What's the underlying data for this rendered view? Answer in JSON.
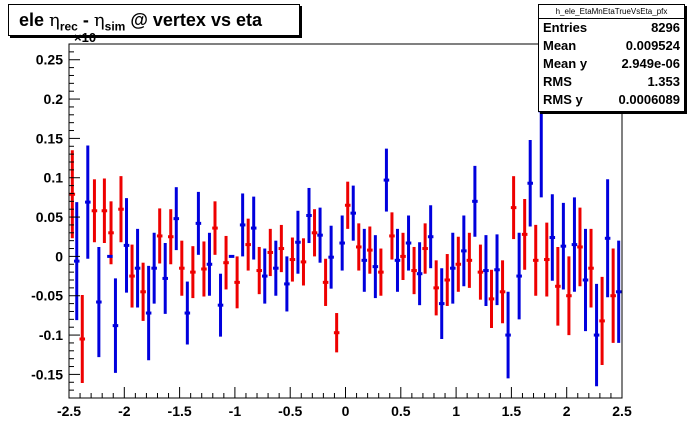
{
  "title": {
    "prefix": "ele ",
    "eta1": "η",
    "sub1": "rec",
    "minus": " - ",
    "eta2": "η",
    "sub2": "sim",
    "suffix": " @ vertex vs eta"
  },
  "stats": {
    "name": "h_ele_EtaMnEtaTrueVsEta_pfx",
    "rows": [
      {
        "label": "Entries",
        "value": "8296"
      },
      {
        "label": "Mean",
        "value": "0.009524"
      },
      {
        "label": "Mean y",
        "value": "2.949e-06"
      },
      {
        "label": "RMS",
        "value": "1.353"
      },
      {
        "label": "RMS y",
        "value": "0.0006089"
      }
    ]
  },
  "exponent_label": "×10",
  "colors": {
    "series_red": "#ee0000",
    "series_blue": "#0000dd"
  },
  "chart_data": {
    "type": "scatter",
    "title": "ele η_rec - η_sim @ vertex vs eta",
    "xlim": [
      -2.5,
      2.5
    ],
    "ylim": [
      -0.18,
      0.27
    ],
    "xticks": [
      -2.5,
      -2,
      -1.5,
      -1,
      -0.5,
      0,
      0.5,
      1,
      1.5,
      2,
      2.5
    ],
    "xtick_labels": [
      "-2.5",
      "-2",
      "-1.5",
      "-1",
      "-0.5",
      "0",
      "0.5",
      "1",
      "1.5",
      "2",
      "2.5"
    ],
    "yticks": [
      -0.15,
      -0.1,
      -0.05,
      0,
      0.05,
      0.1,
      0.15,
      0.2,
      0.25
    ],
    "ytick_labels": [
      "-0.15",
      "-0.1",
      "-0.05",
      "0",
      "0.05",
      "0.1",
      "0.15",
      "0.2",
      "0.25"
    ],
    "bin_half_width": 0.025,
    "series": [
      {
        "color": "#ee0000",
        "points": [
          [
            -2.47,
            0.079,
            0.056
          ],
          [
            -2.38,
            -0.105,
            0.056
          ],
          [
            -2.27,
            0.058,
            0.04
          ],
          [
            -2.18,
            0.058,
            0.041
          ],
          [
            -2.12,
            0.03,
            0.04
          ],
          [
            -2.03,
            0.06,
            0.042
          ],
          [
            -1.93,
            -0.025,
            0.04
          ],
          [
            -1.83,
            -0.045,
            0.037
          ],
          [
            -1.68,
            0.026,
            0.035
          ],
          [
            -1.58,
            0.025,
            0.035
          ],
          [
            -1.48,
            -0.015,
            0.035
          ],
          [
            -1.38,
            -0.02,
            0.033
          ],
          [
            -1.28,
            -0.016,
            0.035
          ],
          [
            -1.18,
            0.036,
            0.034
          ],
          [
            -1.08,
            -0.008,
            0.034
          ],
          [
            -0.98,
            -0.033,
            0.033
          ],
          [
            -0.88,
            0.015,
            0.033
          ],
          [
            -0.78,
            -0.018,
            0.03
          ],
          [
            -0.68,
            0.005,
            0.03
          ],
          [
            -0.58,
            0.01,
            0.03
          ],
          [
            -0.48,
            -0.004,
            0.028
          ],
          [
            -0.38,
            -0.007,
            0.03
          ],
          [
            -0.28,
            0.03,
            0.03
          ],
          [
            -0.18,
            -0.033,
            0.03
          ],
          [
            -0.08,
            -0.097,
            0.025
          ],
          [
            0.02,
            0.065,
            0.03
          ],
          [
            0.12,
            0.012,
            0.03
          ],
          [
            0.22,
            0.008,
            0.03
          ],
          [
            0.32,
            -0.02,
            0.03
          ],
          [
            0.42,
            0.026,
            0.03
          ],
          [
            0.52,
            0.0,
            0.03
          ],
          [
            0.62,
            -0.018,
            0.03
          ],
          [
            0.72,
            0.01,
            0.032
          ],
          [
            0.82,
            -0.04,
            0.035
          ],
          [
            0.92,
            -0.03,
            0.033
          ],
          [
            1.02,
            -0.01,
            0.035
          ],
          [
            1.12,
            -0.005,
            0.035
          ],
          [
            1.22,
            -0.02,
            0.035
          ],
          [
            1.32,
            -0.054,
            0.037
          ],
          [
            1.42,
            -0.045,
            0.04
          ],
          [
            1.52,
            0.062,
            0.04
          ],
          [
            1.62,
            0.028,
            0.045
          ],
          [
            1.72,
            -0.005,
            0.045
          ],
          [
            1.82,
            -0.004,
            0.047
          ],
          [
            1.92,
            -0.038,
            0.05
          ],
          [
            2.02,
            -0.05,
            0.05
          ],
          [
            2.12,
            0.012,
            0.05
          ],
          [
            2.22,
            -0.015,
            0.05
          ],
          [
            2.32,
            -0.082,
            0.056
          ],
          [
            2.42,
            -0.05,
            0.06
          ]
        ]
      },
      {
        "color": "#0000dd",
        "points": [
          [
            -2.43,
            -0.006,
            0.075
          ],
          [
            -2.33,
            0.069,
            0.072
          ],
          [
            -2.23,
            -0.058,
            0.07
          ],
          [
            -2.13,
            0.0,
            0.0
          ],
          [
            -2.08,
            -0.088,
            0.06
          ],
          [
            -1.98,
            0.014,
            0.06
          ],
          [
            -1.88,
            -0.015,
            0.05
          ],
          [
            -1.78,
            -0.072,
            0.06
          ],
          [
            -1.73,
            -0.015,
            0.045
          ],
          [
            -1.63,
            -0.028,
            0.045
          ],
          [
            -1.53,
            0.048,
            0.04
          ],
          [
            -1.43,
            -0.072,
            0.04
          ],
          [
            -1.33,
            0.042,
            0.04
          ],
          [
            -1.23,
            -0.01,
            0.04
          ],
          [
            -1.13,
            -0.062,
            0.04
          ],
          [
            -1.03,
            0.0,
            0.0
          ],
          [
            -0.93,
            0.04,
            0.04
          ],
          [
            -0.83,
            0.036,
            0.04
          ],
          [
            -0.73,
            -0.025,
            0.035
          ],
          [
            -0.63,
            -0.015,
            0.035
          ],
          [
            -0.53,
            -0.035,
            0.035
          ],
          [
            -0.43,
            0.018,
            0.04
          ],
          [
            -0.33,
            0.052,
            0.035
          ],
          [
            -0.23,
            0.027,
            0.035
          ],
          [
            -0.13,
            -0.001,
            0.04
          ],
          [
            -0.03,
            0.017,
            0.035
          ],
          [
            0.07,
            0.055,
            0.035
          ],
          [
            0.17,
            -0.005,
            0.04
          ],
          [
            0.27,
            -0.013,
            0.04
          ],
          [
            0.37,
            0.097,
            0.04
          ],
          [
            0.47,
            -0.005,
            0.04
          ],
          [
            0.57,
            0.017,
            0.035
          ],
          [
            0.67,
            -0.022,
            0.04
          ],
          [
            0.77,
            0.025,
            0.04
          ],
          [
            0.87,
            -0.06,
            0.045
          ],
          [
            0.97,
            -0.015,
            0.045
          ],
          [
            1.07,
            0.007,
            0.045
          ],
          [
            1.17,
            0.07,
            0.045
          ],
          [
            1.27,
            -0.018,
            0.045
          ],
          [
            1.37,
            -0.017,
            0.045
          ],
          [
            1.47,
            -0.1,
            0.055
          ],
          [
            1.57,
            -0.025,
            0.055
          ],
          [
            1.67,
            0.093,
            0.055
          ],
          [
            1.77,
            0.185,
            0.11
          ],
          [
            1.87,
            0.024,
            0.055
          ],
          [
            1.97,
            0.013,
            0.055
          ],
          [
            2.07,
            0.015,
            0.06
          ],
          [
            2.17,
            -0.03,
            0.065
          ],
          [
            2.27,
            -0.1,
            0.065
          ],
          [
            2.37,
            0.023,
            0.075
          ],
          [
            2.47,
            -0.045,
            0.065
          ]
        ]
      }
    ]
  }
}
